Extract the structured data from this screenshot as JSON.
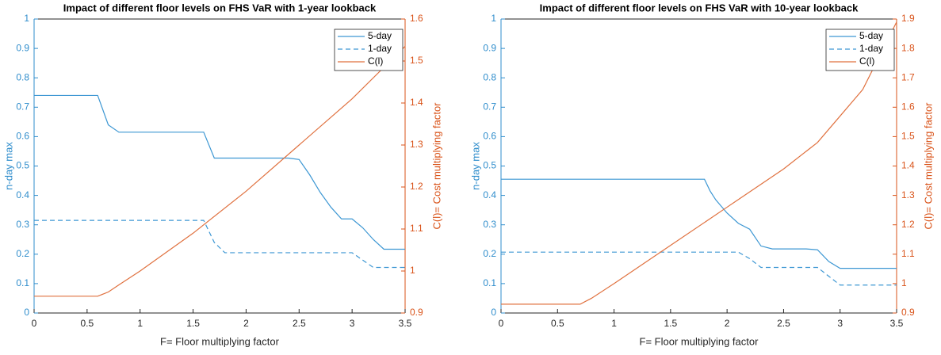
{
  "chart_data": [
    {
      "type": "line",
      "title": "Impact of different floor levels on FHS VaR with 1-year lookback",
      "xlabel": "F= Floor multiplying factor",
      "ylabel": "n-day max",
      "y2label": "C(l)= Cost multiplying factor",
      "xlim": [
        0,
        3.5
      ],
      "xticks": [
        0,
        0.5,
        1,
        1.5,
        2,
        2.5,
        3,
        3.5
      ],
      "ylim": [
        0,
        1
      ],
      "yticks": [
        0,
        0.1,
        0.2,
        0.3,
        0.4,
        0.5,
        0.6,
        0.7,
        0.8,
        0.9,
        1
      ],
      "y2lim": [
        0.9,
        1.6
      ],
      "y2ticks": [
        0.9,
        1,
        1.1,
        1.2,
        1.3,
        1.4,
        1.5,
        1.6
      ],
      "legend": "top-right",
      "series": [
        {
          "name": "5-day",
          "color": "#3d97d3",
          "style": "solid",
          "x": [
            0,
            0.6,
            0.7,
            0.8,
            1.6,
            1.7,
            2.4,
            2.5,
            2.6,
            2.7,
            2.8,
            2.9,
            3.0,
            3.1,
            3.2,
            3.3,
            3.5
          ],
          "values": [
            0.74,
            0.74,
            0.64,
            0.615,
            0.615,
            0.527,
            0.527,
            0.522,
            0.47,
            0.41,
            0.36,
            0.32,
            0.32,
            0.29,
            0.25,
            0.217,
            0.217
          ]
        },
        {
          "name": "1-day",
          "color": "#3d97d3",
          "style": "dashed",
          "x": [
            0,
            1.6,
            1.7,
            1.8,
            3.0,
            3.1,
            3.2,
            3.5
          ],
          "values": [
            0.315,
            0.315,
            0.24,
            0.205,
            0.205,
            0.18,
            0.155,
            0.155
          ]
        },
        {
          "name": "C(l)",
          "color": "#e0713f",
          "style": "solid",
          "axis": "y2",
          "x": [
            0,
            0.6,
            0.7,
            0.8,
            1.0,
            1.5,
            2.0,
            2.5,
            3.0,
            3.5
          ],
          "values": [
            0.94,
            0.94,
            0.95,
            0.967,
            1.0,
            1.09,
            1.19,
            1.3,
            1.41,
            1.535
          ]
        }
      ]
    },
    {
      "type": "line",
      "title": "Impact of different floor levels on FHS VaR with 10-year lookback",
      "xlabel": "F= Floor multiplying factor",
      "ylabel": "n-day max",
      "y2label": "C(l)= Cost multiplying factor",
      "xlim": [
        0,
        3.5
      ],
      "xticks": [
        0,
        0.5,
        1,
        1.5,
        2,
        2.5,
        3,
        3.5
      ],
      "ylim": [
        0,
        1
      ],
      "yticks": [
        0,
        0.1,
        0.2,
        0.3,
        0.4,
        0.5,
        0.6,
        0.7,
        0.8,
        0.9,
        1
      ],
      "y2lim": [
        0.9,
        1.9
      ],
      "y2ticks": [
        0.9,
        1,
        1.1,
        1.2,
        1.3,
        1.4,
        1.5,
        1.6,
        1.7,
        1.8,
        1.9
      ],
      "legend": "top-right",
      "series": [
        {
          "name": "5-day",
          "color": "#3d97d3",
          "style": "solid",
          "x": [
            0,
            1.8,
            1.85,
            1.9,
            2.0,
            2.1,
            2.2,
            2.3,
            2.4,
            2.7,
            2.8,
            2.9,
            3.0,
            3.5
          ],
          "values": [
            0.455,
            0.455,
            0.415,
            0.385,
            0.34,
            0.305,
            0.285,
            0.228,
            0.218,
            0.218,
            0.215,
            0.175,
            0.152,
            0.152
          ]
        },
        {
          "name": "1-day",
          "color": "#3d97d3",
          "style": "dashed",
          "x": [
            0,
            2.1,
            2.2,
            2.3,
            2.8,
            2.9,
            3.0,
            3.5
          ],
          "values": [
            0.207,
            0.207,
            0.185,
            0.155,
            0.155,
            0.125,
            0.095,
            0.095
          ]
        },
        {
          "name": "C(l)",
          "color": "#e0713f",
          "style": "solid",
          "axis": "y2",
          "x": [
            0,
            0.7,
            0.8,
            1.0,
            1.5,
            2.0,
            2.5,
            2.8,
            3.0,
            3.2,
            3.5
          ],
          "values": [
            0.93,
            0.93,
            0.95,
            1.0,
            1.13,
            1.26,
            1.39,
            1.48,
            1.57,
            1.66,
            1.89
          ]
        }
      ]
    }
  ]
}
